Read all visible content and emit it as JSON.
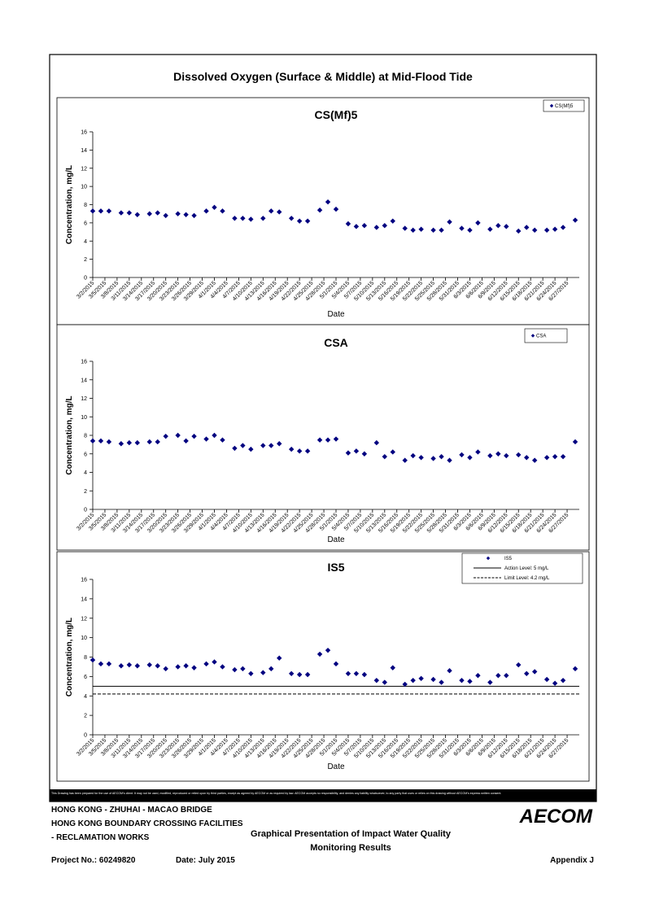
{
  "title": "Dissolved Oxygen (Surface & Middle) at Mid-Flood Tide",
  "chart_data": [
    {
      "type": "scatter",
      "title": "CS(Mf)5",
      "x_label": "Date",
      "y_label": "Concentration, mg/L",
      "x": [
        "3/2/2015",
        "3/4/2015",
        "3/6/2015",
        "3/9/2015",
        "3/11/2015",
        "3/13/2015",
        "3/16/2015",
        "3/18/2015",
        "3/20/2015",
        "3/23/2015",
        "3/25/2015",
        "3/27/2015",
        "3/30/2015",
        "4/1/2015",
        "4/3/2015",
        "4/6/2015",
        "4/8/2015",
        "4/10/2015",
        "4/13/2015",
        "4/15/2015",
        "4/17/2015",
        "4/20/2015",
        "4/22/2015",
        "4/24/2015",
        "4/27/2015",
        "4/29/2015",
        "5/1/2015",
        "5/4/2015",
        "5/6/2015",
        "5/8/2015",
        "5/11/2015",
        "5/13/2015",
        "5/15/2015",
        "5/18/2015",
        "5/20/2015",
        "5/22/2015",
        "5/25/2015",
        "5/27/2015",
        "5/29/2015",
        "6/1/2015",
        "6/3/2015",
        "6/5/2015",
        "6/8/2015",
        "6/10/2015",
        "6/12/2015",
        "6/15/2015",
        "6/17/2015",
        "6/19/2015",
        "6/22/2015",
        "6/24/2015",
        "6/26/2015",
        "6/29/2015"
      ],
      "series": [
        {
          "name": "CS(Mf)5",
          "color": "#000080",
          "values": [
            7.3,
            7.3,
            7.3,
            7.1,
            7.1,
            6.9,
            7.0,
            7.1,
            6.8,
            7.0,
            6.9,
            6.8,
            7.3,
            7.7,
            7.3,
            6.5,
            6.5,
            6.4,
            6.5,
            7.3,
            7.2,
            6.5,
            6.2,
            6.2,
            7.4,
            8.3,
            7.5,
            5.9,
            5.6,
            5.7,
            5.5,
            5.7,
            6.2,
            5.4,
            5.2,
            5.3,
            5.2,
            5.2,
            6.1,
            5.4,
            5.2,
            6.0,
            5.3,
            5.7,
            5.6,
            5.1,
            5.5,
            5.2,
            5.2,
            5.3,
            5.5,
            6.3
          ]
        }
      ],
      "xlim": [
        "3/2/2015",
        "6/30/2015"
      ],
      "xticks": [
        "3/2/2015",
        "3/5/2015",
        "3/8/2015",
        "3/11/2015",
        "3/14/2015",
        "3/17/2015",
        "3/20/2015",
        "3/23/2015",
        "3/26/2015",
        "3/29/2015",
        "4/1/2015",
        "4/4/2015",
        "4/7/2015",
        "4/10/2015",
        "4/13/2015",
        "4/16/2015",
        "4/19/2015",
        "4/22/2015",
        "4/25/2015",
        "4/28/2015",
        "5/1/2015",
        "5/4/2015",
        "5/7/2015",
        "5/10/2015",
        "5/13/2015",
        "5/16/2015",
        "5/19/2015",
        "5/22/2015",
        "5/25/2015",
        "5/28/2015",
        "5/31/2015",
        "6/3/2015",
        "6/6/2015",
        "6/9/2015",
        "6/12/2015",
        "6/15/2015",
        "6/18/2015",
        "6/21/2015",
        "6/24/2015",
        "6/27/2015"
      ],
      "ylim": [
        0,
        16
      ],
      "yticks": [
        0,
        2,
        4,
        6,
        8,
        10,
        12,
        14,
        16
      ],
      "grid": false,
      "legend": "top-right"
    },
    {
      "type": "scatter",
      "title": "CSA",
      "x_label": "Date",
      "y_label": "Concentration, mg/L",
      "x": [
        "3/2/2015",
        "3/4/2015",
        "3/6/2015",
        "3/9/2015",
        "3/11/2015",
        "3/13/2015",
        "3/16/2015",
        "3/18/2015",
        "3/20/2015",
        "3/23/2015",
        "3/25/2015",
        "3/27/2015",
        "3/30/2015",
        "4/1/2015",
        "4/3/2015",
        "4/6/2015",
        "4/8/2015",
        "4/10/2015",
        "4/13/2015",
        "4/15/2015",
        "4/17/2015",
        "4/20/2015",
        "4/22/2015",
        "4/24/2015",
        "4/27/2015",
        "4/29/2015",
        "5/1/2015",
        "5/4/2015",
        "5/6/2015",
        "5/8/2015",
        "5/11/2015",
        "5/13/2015",
        "5/15/2015",
        "5/18/2015",
        "5/20/2015",
        "5/22/2015",
        "5/25/2015",
        "5/27/2015",
        "5/29/2015",
        "6/1/2015",
        "6/3/2015",
        "6/5/2015",
        "6/8/2015",
        "6/10/2015",
        "6/12/2015",
        "6/15/2015",
        "6/17/2015",
        "6/19/2015",
        "6/22/2015",
        "6/24/2015",
        "6/26/2015",
        "6/29/2015"
      ],
      "series": [
        {
          "name": "CSA",
          "color": "#000080",
          "values": [
            7.4,
            7.4,
            7.3,
            7.1,
            7.2,
            7.2,
            7.3,
            7.3,
            7.9,
            8.0,
            7.4,
            7.9,
            7.6,
            8.0,
            7.5,
            6.6,
            6.9,
            6.5,
            6.9,
            6.9,
            7.1,
            6.5,
            6.3,
            6.3,
            7.5,
            7.5,
            7.6,
            6.1,
            6.3,
            6.0,
            7.2,
            5.7,
            6.2,
            5.3,
            5.8,
            5.6,
            5.5,
            5.7,
            5.3,
            5.9,
            5.6,
            6.2,
            5.8,
            6.0,
            5.8,
            5.9,
            5.6,
            5.3,
            5.6,
            5.7,
            5.7,
            7.3
          ]
        }
      ],
      "xlim": [
        "3/2/2015",
        "6/30/2015"
      ],
      "xticks": [
        "3/2/2015",
        "3/5/2015",
        "3/8/2015",
        "3/11/2015",
        "3/14/2015",
        "3/17/2015",
        "3/20/2015",
        "3/23/2015",
        "3/26/2015",
        "3/29/2015",
        "4/1/2015",
        "4/4/2015",
        "4/7/2015",
        "4/10/2015",
        "4/13/2015",
        "4/16/2015",
        "4/19/2015",
        "4/22/2015",
        "4/25/2015",
        "4/28/2015",
        "5/1/2015",
        "5/4/2015",
        "5/7/2015",
        "5/10/2015",
        "5/13/2015",
        "5/16/2015",
        "5/19/2015",
        "5/22/2015",
        "5/25/2015",
        "5/28/2015",
        "5/31/2015",
        "6/3/2015",
        "6/6/2015",
        "6/9/2015",
        "6/12/2015",
        "6/15/2015",
        "6/18/2015",
        "6/21/2015",
        "6/24/2015",
        "6/27/2015"
      ],
      "ylim": [
        0,
        16
      ],
      "yticks": [
        0,
        2,
        4,
        6,
        8,
        10,
        12,
        14,
        16
      ],
      "grid": false,
      "legend": "top-right"
    },
    {
      "type": "scatter",
      "title": "IS5",
      "x_label": "Date",
      "y_label": "Concentration, mg/L",
      "x": [
        "3/2/2015",
        "3/4/2015",
        "3/6/2015",
        "3/9/2015",
        "3/11/2015",
        "3/13/2015",
        "3/16/2015",
        "3/18/2015",
        "3/20/2015",
        "3/23/2015",
        "3/25/2015",
        "3/27/2015",
        "3/30/2015",
        "4/1/2015",
        "4/3/2015",
        "4/6/2015",
        "4/8/2015",
        "4/10/2015",
        "4/13/2015",
        "4/15/2015",
        "4/17/2015",
        "4/20/2015",
        "4/22/2015",
        "4/24/2015",
        "4/27/2015",
        "4/29/2015",
        "5/1/2015",
        "5/4/2015",
        "5/6/2015",
        "5/8/2015",
        "5/11/2015",
        "5/13/2015",
        "5/15/2015",
        "5/18/2015",
        "5/20/2015",
        "5/22/2015",
        "5/25/2015",
        "5/27/2015",
        "5/29/2015",
        "6/1/2015",
        "6/3/2015",
        "6/5/2015",
        "6/8/2015",
        "6/10/2015",
        "6/12/2015",
        "6/15/2015",
        "6/17/2015",
        "6/19/2015",
        "6/22/2015",
        "6/24/2015",
        "6/26/2015",
        "6/29/2015"
      ],
      "series": [
        {
          "name": "IS5",
          "color": "#000080",
          "values": [
            7.7,
            7.3,
            7.3,
            7.1,
            7.2,
            7.1,
            7.2,
            7.1,
            6.8,
            7.0,
            7.1,
            6.9,
            7.3,
            7.5,
            7.0,
            6.7,
            6.8,
            6.3,
            6.4,
            6.8,
            7.9,
            6.3,
            6.2,
            6.2,
            8.3,
            8.7,
            7.3,
            6.3,
            6.3,
            6.2,
            5.6,
            5.4,
            6.9,
            5.2,
            5.6,
            5.8,
            5.7,
            5.4,
            6.6,
            5.6,
            5.5,
            6.1,
            5.4,
            6.1,
            6.1,
            7.2,
            6.3,
            6.5,
            5.7,
            5.3,
            5.6,
            6.8
          ]
        }
      ],
      "lines": [
        {
          "name": "Action Level: 5 mg/L",
          "value": 5,
          "style": "solid"
        },
        {
          "name": "Limit Level: 4.2 mg/L",
          "value": 4.2,
          "style": "dashed"
        }
      ],
      "xlim": [
        "3/2/2015",
        "6/30/2015"
      ],
      "xticks": [
        "3/2/2015",
        "3/5/2015",
        "3/8/2015",
        "3/11/2015",
        "3/14/2015",
        "3/17/2015",
        "3/20/2015",
        "3/23/2015",
        "3/26/2015",
        "3/29/2015",
        "4/1/2015",
        "4/4/2015",
        "4/7/2015",
        "4/10/2015",
        "4/13/2015",
        "4/16/2015",
        "4/19/2015",
        "4/22/2015",
        "4/25/2015",
        "4/28/2015",
        "5/1/2015",
        "5/4/2015",
        "5/7/2015",
        "5/10/2015",
        "5/13/2015",
        "5/16/2015",
        "5/19/2015",
        "5/22/2015",
        "5/25/2015",
        "5/28/2015",
        "5/31/2015",
        "6/3/2015",
        "6/6/2015",
        "6/9/2015",
        "6/12/2015",
        "6/15/2015",
        "6/18/2015",
        "6/21/2015",
        "6/24/2015",
        "6/27/2015"
      ],
      "ylim": [
        0,
        16
      ],
      "yticks": [
        0,
        2,
        4,
        6,
        8,
        10,
        12,
        14,
        16
      ],
      "grid": false,
      "legend": "top-right"
    }
  ],
  "disclaimer": "This Drawing has been prepared for the use of AECOM's client. It may not be used, modified, reproduced or relied upon by third parties, except as agreed by AECOM or as required by law. AECOM accepts no responsibility, and denies any liability whatsoever, to any party that uses or relies on this drawing without AECOM's express written consent.",
  "footer": {
    "project_lines": [
      "HONG KONG - ZHUHAI - MACAO BRIDGE",
      "HONG KONG BOUNDARY CROSSING FACILITIES",
      "- RECLAMATION WORKS"
    ],
    "logo": "AECOM",
    "drawing_title": [
      "Graphical Presentation of Impact Water Quality",
      "Monitoring Results"
    ],
    "project_no": "Project No.: 60249820",
    "date": "Date: July 2015",
    "appendix": "Appendix J"
  }
}
